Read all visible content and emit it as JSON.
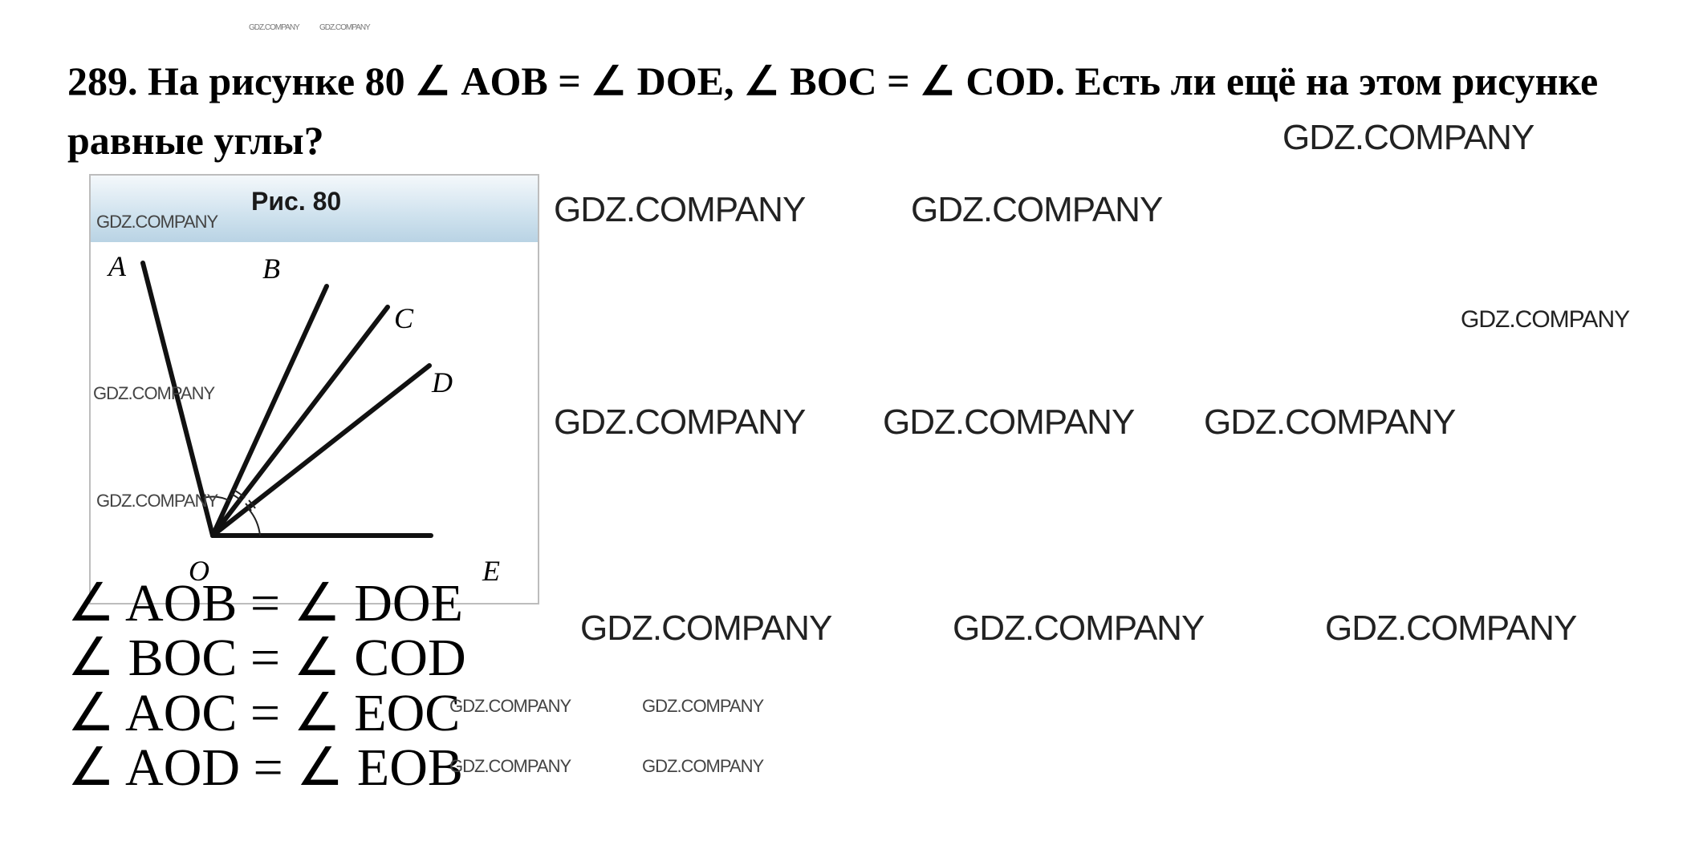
{
  "problem": {
    "text": "289. На рисунке 80 ∠ AOB = ∠ DOE, ∠ BOC = ∠ COD. Есть ли ещё на этом рисунке равные углы?"
  },
  "figure": {
    "caption": "Рис. 80",
    "points": {
      "A": "A",
      "B": "B",
      "C": "C",
      "D": "D",
      "E": "E",
      "O": "O"
    }
  },
  "answer": {
    "lines": [
      "∠ AOB = ∠ DOE",
      "∠ BOC = ∠ COD",
      "∠ AOC = ∠ EOC",
      "∠ AOD = ∠ EOB"
    ]
  },
  "watermark": "GDZ.COMPANY"
}
